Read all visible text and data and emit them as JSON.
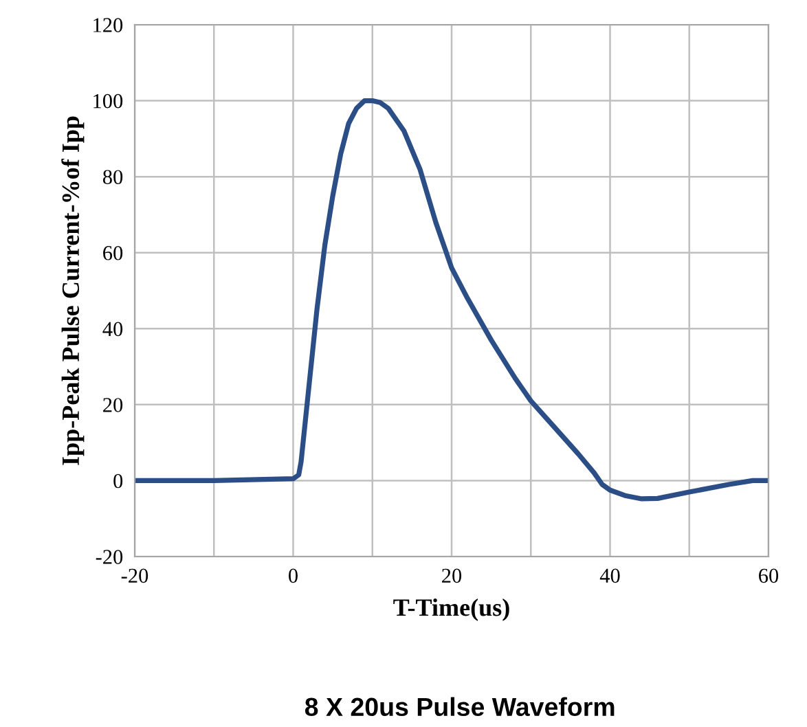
{
  "chart_data": {
    "type": "line",
    "title": "8 X 20us Pulse Waveform",
    "xlabel": "T-Time(us)",
    "ylabel": "Ipp-Peak Pulse Current-%of Ipp",
    "x": [
      -20,
      -10,
      0,
      0.7,
      1,
      2,
      3,
      4,
      5,
      6,
      7,
      8,
      9,
      10,
      11,
      12,
      14,
      16,
      18,
      19,
      20,
      22,
      25,
      28,
      30,
      33,
      36,
      38,
      39,
      40,
      42,
      44,
      46,
      50,
      55,
      58,
      60
    ],
    "series": [
      {
        "color": "#2a4e85",
        "values": [
          0,
          0,
          0.5,
          1.5,
          5,
          25,
          45,
          62,
          75,
          86,
          94,
          98,
          100,
          100,
          99.5,
          98,
          92,
          82,
          68,
          62,
          56,
          48,
          37,
          27,
          21,
          14,
          7,
          2,
          -1,
          -2.5,
          -4,
          -4.8,
          -4.7,
          -3,
          -1,
          0,
          0
        ]
      }
    ],
    "xlim": [
      -20,
      60
    ],
    "xticks": [
      -20,
      {
        "value": -10,
        "label": null
      },
      0,
      {
        "value": 10,
        "label": null
      },
      20,
      {
        "value": 30,
        "label": null
      },
      40,
      {
        "value": 50,
        "label": null
      },
      60
    ],
    "ylim": [
      -20,
      120
    ],
    "yticks": [
      -20,
      0,
      20,
      40,
      60,
      80,
      100,
      120
    ],
    "grid": true,
    "legend": false,
    "marker": "none",
    "line_style": "solid"
  }
}
